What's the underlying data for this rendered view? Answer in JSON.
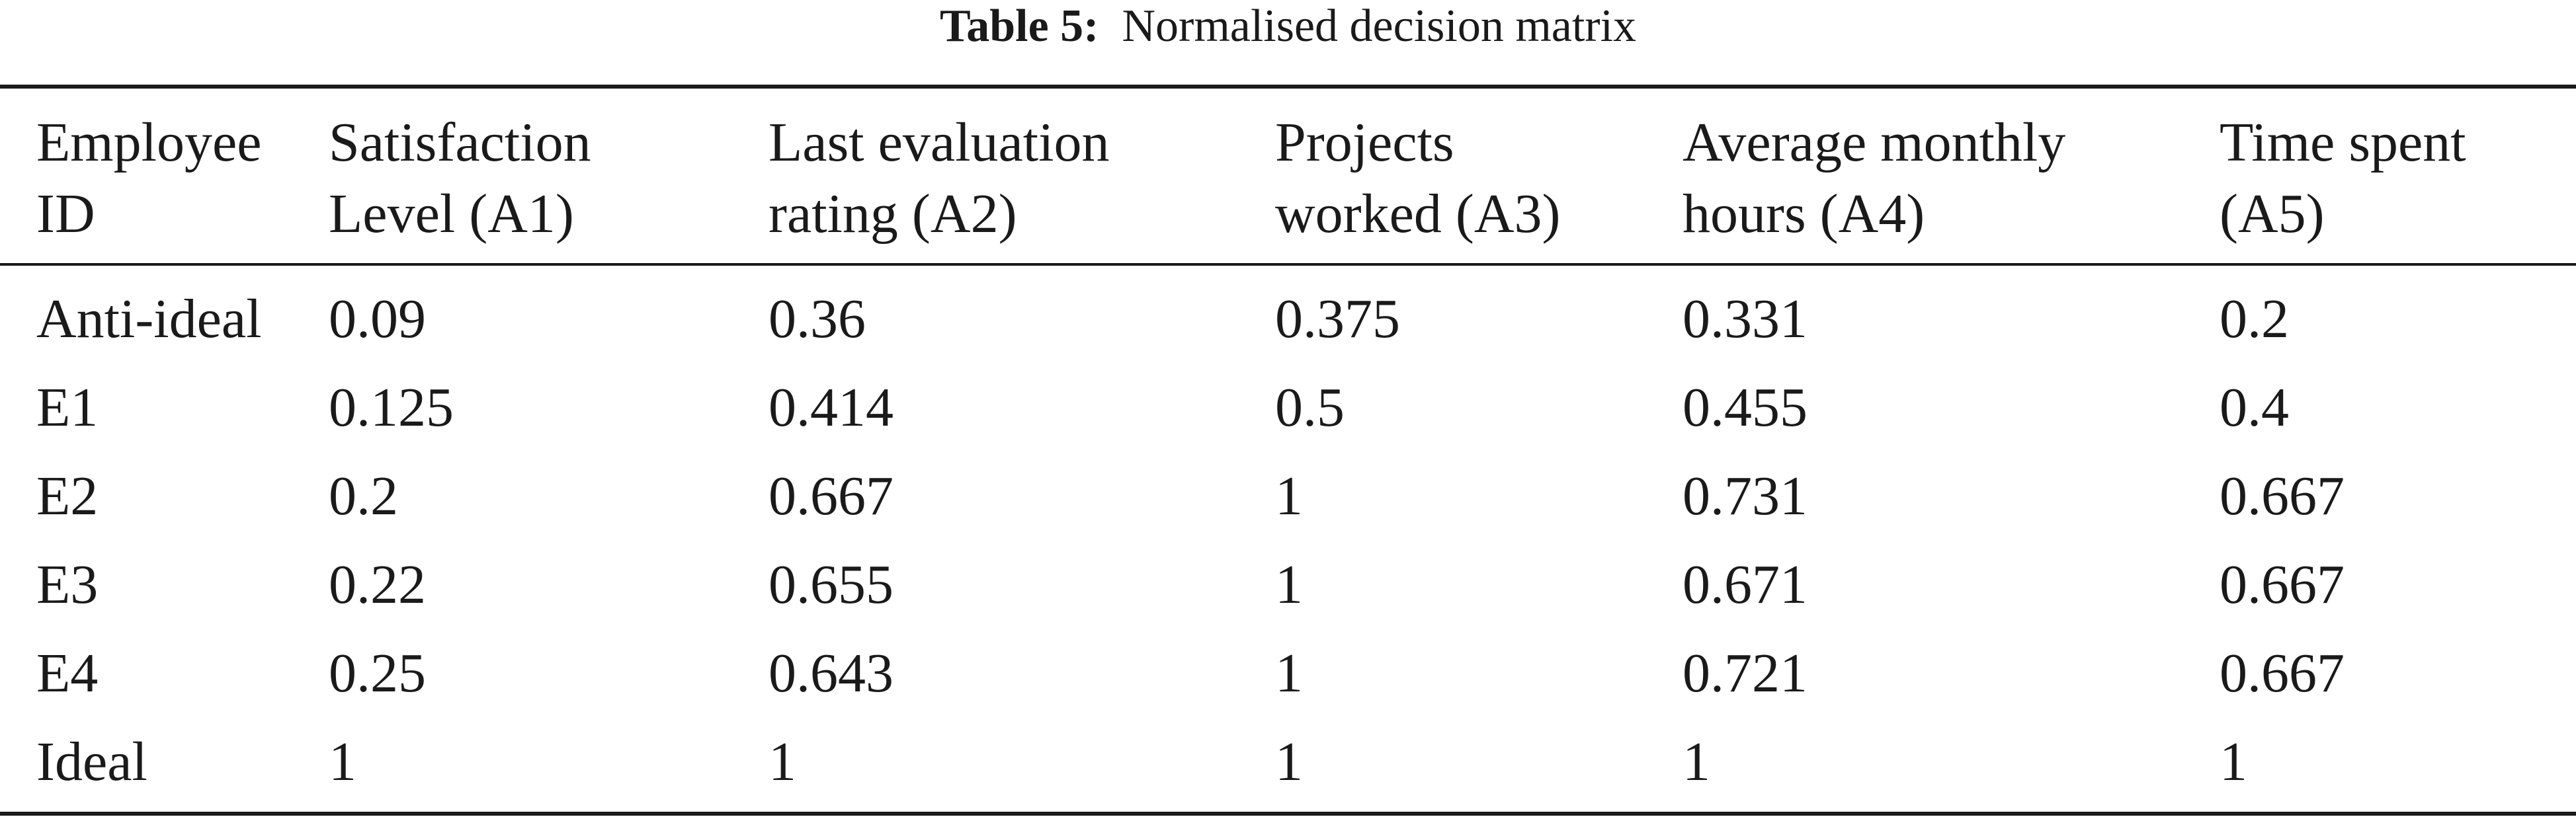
{
  "caption": {
    "label": "Table 5:",
    "text": "Normalised decision matrix"
  },
  "table": {
    "headers": [
      [
        "Employee",
        "ID"
      ],
      [
        "Satisfaction",
        "Level (A1)"
      ],
      [
        "Last evaluation",
        "rating (A2)"
      ],
      [
        "Projects",
        "worked (A3)"
      ],
      [
        "Average monthly",
        "hours (A4)"
      ],
      [
        "Time spent",
        "(A5)"
      ]
    ],
    "rows": [
      [
        "Anti-ideal",
        "0.09",
        "0.36",
        "0.375",
        "0.331",
        "0.2"
      ],
      [
        "E1",
        "0.125",
        "0.414",
        "0.5",
        "0.455",
        "0.4"
      ],
      [
        "E2",
        "0.2",
        "0.667",
        "1",
        "0.731",
        "0.667"
      ],
      [
        "E3",
        "0.22",
        "0.655",
        "1",
        "0.671",
        "0.667"
      ],
      [
        "E4",
        "0.25",
        "0.643",
        "1",
        "0.721",
        "0.667"
      ],
      [
        "Ideal",
        "1",
        "1",
        "1",
        "1",
        "1"
      ]
    ]
  }
}
